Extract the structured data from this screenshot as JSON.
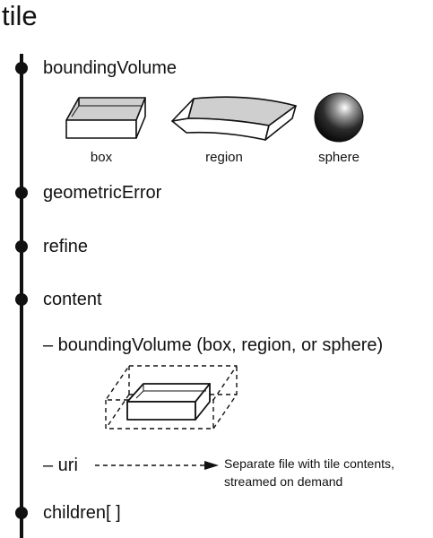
{
  "title": "tile",
  "nodes": [
    {
      "id": "boundingVolume",
      "label": "boundingVolume"
    },
    {
      "id": "geometricError",
      "label": "geometricError"
    },
    {
      "id": "refine",
      "label": "refine"
    },
    {
      "id": "content",
      "label": "content"
    },
    {
      "id": "children",
      "label": "children[ ]"
    }
  ],
  "volume_types": [
    {
      "shape": "box-icon",
      "label": "box"
    },
    {
      "shape": "region-icon",
      "label": "region"
    },
    {
      "shape": "sphere-icon",
      "label": "sphere"
    }
  ],
  "content": {
    "bounding_volume_label": "– boundingVolume (box, region, or sphere)",
    "uri_label": "– uri",
    "uri_note_line1": "Separate file with tile contents,",
    "uri_note_line2": "streamed on demand"
  },
  "colors": {
    "ink": "#111111",
    "box_fill": "#cfcfcf",
    "sphere_dark": "#111111",
    "sphere_highlight": "#ffffff"
  }
}
